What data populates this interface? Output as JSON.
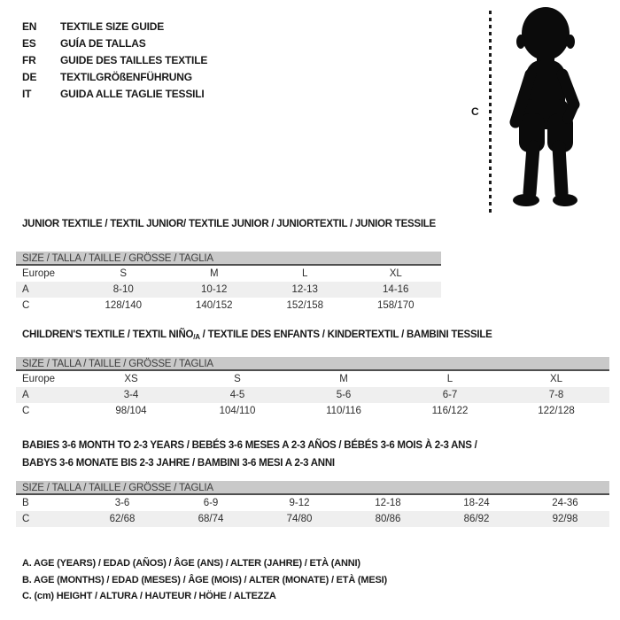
{
  "languages": [
    {
      "code": "EN",
      "title": "TEXTILE SIZE GUIDE"
    },
    {
      "code": "ES",
      "title": "GUÍA DE TALLAS"
    },
    {
      "code": "FR",
      "title": "GUIDE DES TAILLES TEXTILE"
    },
    {
      "code": "DE",
      "title": "TEXTILGRÖßENFÜHRUNG"
    },
    {
      "code": "IT",
      "title": "GUIDA ALLE TAGLIE TESSILI"
    }
  ],
  "figure": {
    "measure_label": "C"
  },
  "sections": [
    {
      "title": "JUNIOR TEXTILE / TEXTIL JUNIOR/ TEXTILE JUNIOR / JUNIORTEXTIL / JUNIOR TESSILE",
      "size_header": "SIZE / TALLA / TAILLE / GRÖSSE / TAGLIA",
      "rows": [
        {
          "label": "Europe",
          "values": [
            "S",
            "M",
            "L",
            "XL"
          ],
          "striped": false
        },
        {
          "label": "A",
          "values": [
            "8-10",
            "10-12",
            "12-13",
            "14-16"
          ],
          "striped": true
        },
        {
          "label": "C",
          "values": [
            "128/140",
            "140/152",
            "152/158",
            "158/170"
          ],
          "striped": false
        }
      ]
    },
    {
      "title_pre": "CHILDREN'S TEXTILE / TEXTIL NIÑO",
      "title_sub": "/A",
      "title_post": " / TEXTILE DES ENFANTS / KINDERTEXTIL / BAMBINI TESSILE",
      "size_header": "SIZE / TALLA / TAILLE / GRÖSSE / TAGLIA",
      "rows": [
        {
          "label": "Europe",
          "values": [
            "XS",
            "S",
            "M",
            "L",
            "XL"
          ],
          "striped": false
        },
        {
          "label": "A",
          "values": [
            "3-4",
            "4-5",
            "5-6",
            "6-7",
            "7-8"
          ],
          "striped": true
        },
        {
          "label": "C",
          "values": [
            "98/104",
            "104/110",
            "110/116",
            "116/122",
            "122/128"
          ],
          "striped": false
        }
      ]
    },
    {
      "title_line1": "BABIES 3-6 MONTH TO 2-3 YEARS / BEBÉS 3-6 MESES A 2-3 AÑOS / BÉBÉS 3-6 MOIS À 2-3 ANS /",
      "title_line2": "BABYS 3-6 MONATE BIS 2-3 JAHRE / BAMBINI 3-6 MESI A 2-3 ANNI",
      "size_header": "SIZE / TALLA / TAILLE / GRÖSSE / TAGLIA",
      "rows": [
        {
          "label": "B",
          "values": [
            "3-6",
            "6-9",
            "9-12",
            "12-18",
            "18-24",
            "24-36"
          ],
          "striped": false
        },
        {
          "label": "C",
          "values": [
            "62/68",
            "68/74",
            "74/80",
            "80/86",
            "86/92",
            "92/98"
          ],
          "striped": true
        }
      ]
    }
  ],
  "notes": [
    "A. AGE (YEARS) / EDAD (AÑOS) / ÂGE (ANS) / ALTER (JAHRE) / ETÀ (ANNI)",
    "B. AGE (MONTHS) / EDAD (MESES) / ÂGE (MOIS) / ALTER (MONATE) / ETÀ (MESI)",
    "C. (cm) HEIGHT / ALTURA / HAUTEUR / HÖHE / ALTEZZA"
  ],
  "colors": {
    "size_bar_bg": "#c9c9c9",
    "stripe_bg": "#efefef",
    "bar_border": "#4f4f4f",
    "text": "#2e2e2e",
    "title_text": "#1a1a1a",
    "silhouette": "#0b0b0b"
  }
}
